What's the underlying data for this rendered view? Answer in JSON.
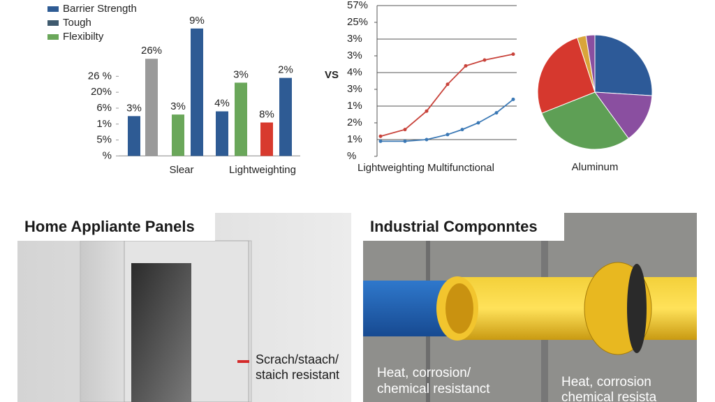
{
  "chart_data": [
    {
      "type": "bar",
      "legend": [
        {
          "name": "Barrier Strength",
          "color": "#2e5b94"
        },
        {
          "name": "Tough",
          "color": "#3f5a6e"
        },
        {
          "name": "Flexibilty",
          "color": "#6aa75a"
        }
      ],
      "categories": [
        null,
        null,
        null,
        null,
        null,
        null,
        null,
        null
      ],
      "group_labels": [
        "Slear",
        "Lightweighting"
      ],
      "values": [
        2.5,
        6.1,
        2.6,
        8.0,
        2.8,
        4.6,
        2.1,
        4.9
      ],
      "bar_labels": [
        "3%",
        "26%",
        "3%",
        "9%",
        "4%",
        "3%",
        "8%",
        "2%"
      ],
      "colors": [
        "#2e5b94",
        "#9a9a9a",
        "#6aa75a",
        "#2e5b94",
        "#2e5b94",
        "#6aa75a",
        "#d83a2e",
        "#2e5b94"
      ],
      "ylim": [
        -0.2,
        8.3
      ],
      "yticks": [
        {
          "value": 0,
          "label": "%"
        },
        {
          "value": 1,
          "label": "5%"
        },
        {
          "value": 2,
          "label": "1%"
        },
        {
          "value": 3,
          "label": "6%"
        },
        {
          "value": 4,
          "label": "20%"
        },
        {
          "value": 5,
          "label": "26 %"
        }
      ]
    },
    {
      "type": "line",
      "annotation": "VS",
      "x_label": "Lightweighting Multifunctional",
      "xlim": [
        0,
        10
      ],
      "ylim": [
        0,
        9
      ],
      "yticks": [
        {
          "value": 0,
          "label": "%"
        },
        {
          "value": 1,
          "label": "1%"
        },
        {
          "value": 2,
          "label": "2%"
        },
        {
          "value": 3,
          "label": "1%"
        },
        {
          "value": 4,
          "label": "3%"
        },
        {
          "value": 5,
          "label": "4%"
        },
        {
          "value": 6,
          "label": "3%"
        },
        {
          "value": 7,
          "label": "3%"
        },
        {
          "value": 8,
          "label": "25%"
        },
        {
          "value": 9,
          "label": "57%"
        }
      ],
      "grid": true,
      "series": [
        {
          "color": "#c8423a",
          "x": [
            0.25,
            2,
            3.55,
            5.05,
            6.35,
            7.7,
            9.75
          ],
          "values": [
            1.2,
            1.6,
            2.7,
            4.3,
            5.4,
            5.75,
            6.1
          ]
        },
        {
          "color": "#3a78b5",
          "x": [
            0.25,
            2,
            3.55,
            5.05,
            6.1,
            7.25,
            8.55,
            9.75
          ],
          "values": [
            0.9,
            0.9,
            1.0,
            1.3,
            1.6,
            2.0,
            2.6,
            3.4
          ]
        }
      ]
    },
    {
      "type": "pie",
      "title": "Aluminum",
      "categories": [
        null,
        null,
        null,
        null,
        null,
        null
      ],
      "values": [
        26,
        14,
        29,
        26,
        2.5,
        2.5
      ],
      "colors": [
        "#2d5a98",
        "#8a4fa0",
        "#5e9f55",
        "#d6382e",
        "#d9a53a",
        "#8a4fa0"
      ]
    }
  ],
  "panels": [
    {
      "title": "Home Appliante Panels",
      "notes": [
        [
          "Scrach/staach/",
          "staich resistant"
        ]
      ]
    },
    {
      "title": "Industrial Componntes",
      "notes": [
        [
          "Heat, corrosion/",
          "chemical resistanct"
        ],
        [
          "Heat, corrosion",
          "chemical resista"
        ]
      ]
    }
  ]
}
